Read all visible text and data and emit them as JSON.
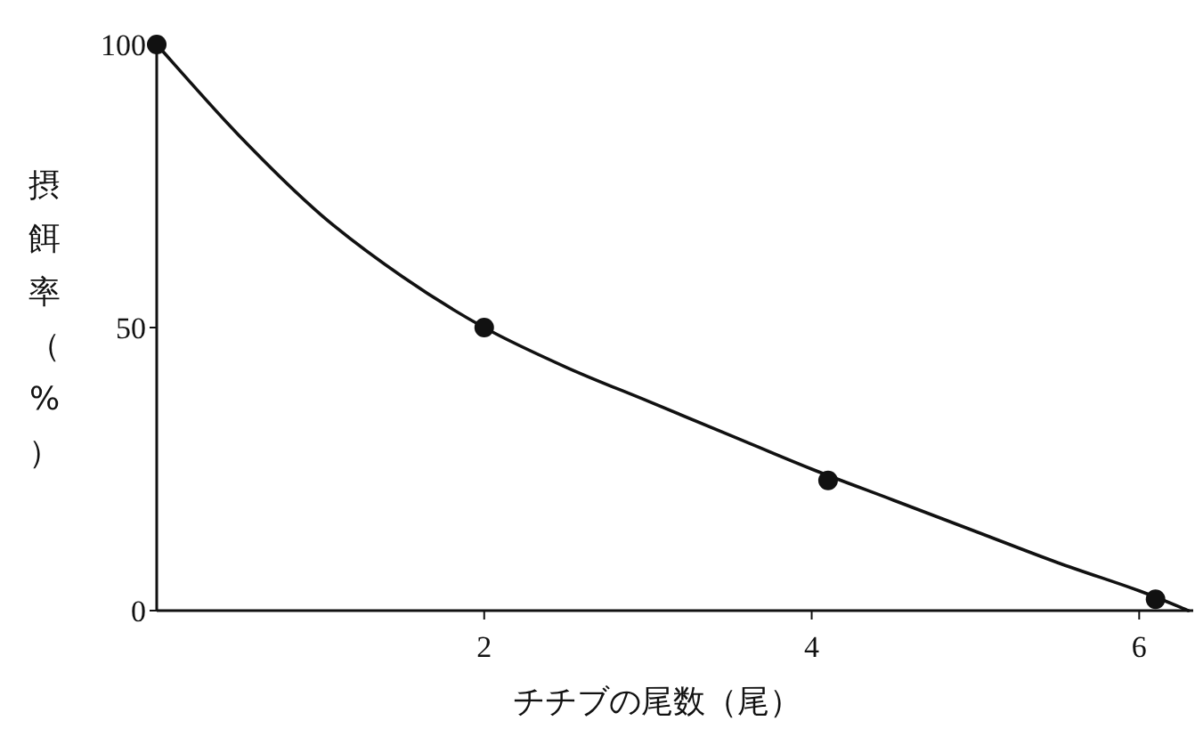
{
  "chart_data": {
    "type": "line",
    "xlabel": "チチブの尾数（尾）",
    "ylabel": "摂餌率（%）",
    "xlim": [
      0,
      6.33
    ],
    "xticks": [
      2,
      4,
      6
    ],
    "ylim": [
      0,
      100
    ],
    "yticks": [
      0,
      50,
      100
    ],
    "series": [
      {
        "color": "#111111",
        "marker": "none",
        "x": [
          0,
          0.5,
          1,
          1.5,
          2,
          2.5,
          3,
          3.5,
          4,
          4.5,
          5,
          5.5,
          6,
          6.3
        ],
        "values": [
          100,
          84,
          70,
          59,
          50,
          43,
          37,
          31,
          25,
          19.5,
          14,
          8.5,
          3.5,
          0
        ]
      },
      {
        "type": "scatter",
        "color": "#111111",
        "marker": "circle",
        "x": [
          0,
          2,
          4.1,
          6.1
        ],
        "values": [
          100,
          50,
          23,
          2
        ]
      }
    ]
  }
}
